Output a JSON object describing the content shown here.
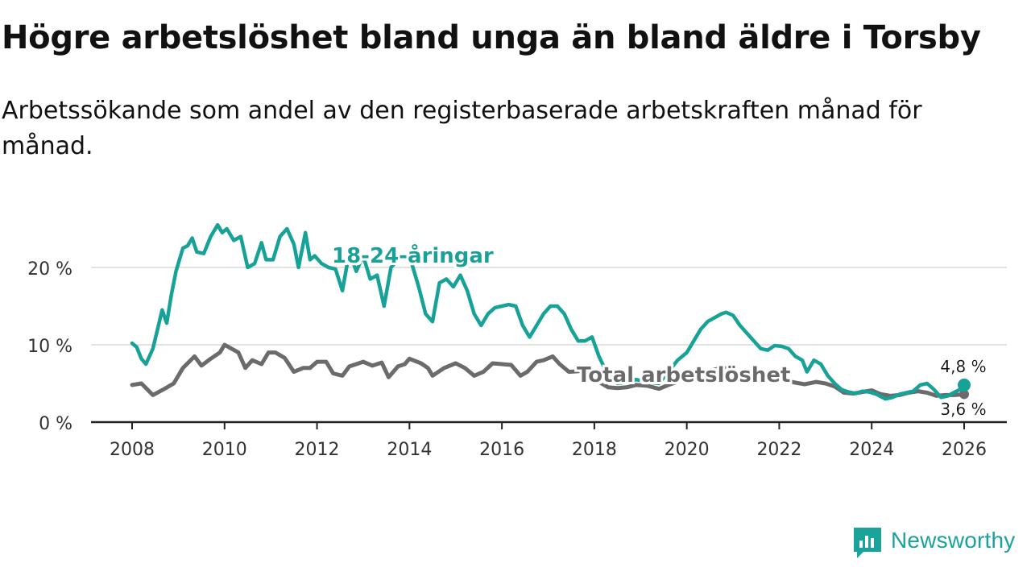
{
  "title": "Högre arbetslöshet bland unga än bland äldre i Torsby",
  "subtitle": "Arbetssökande som andel av den registerbaserade arbetskraften månad för månad.",
  "brand": "Newsworthy",
  "chart_data": {
    "type": "line",
    "title": "Högre arbetslöshet bland unga än bland äldre i Torsby",
    "subtitle": "Arbetssökande som andel av den registerbaserade arbetskraften månad för månad.",
    "xlabel": "",
    "ylabel": "",
    "xlim": [
      2008,
      2026
    ],
    "ylim": [
      0,
      26
    ],
    "grid": true,
    "x_ticks": [
      2008,
      2010,
      2012,
      2014,
      2016,
      2018,
      2020,
      2022,
      2024,
      2026
    ],
    "x_tick_labels": [
      "2008",
      "2010",
      "2012",
      "2014",
      "2016",
      "2018",
      "2020",
      "2022",
      "2024",
      "2026"
    ],
    "y_ticks": [
      0,
      10,
      20
    ],
    "y_tick_labels": [
      "0 %",
      "10 %",
      "20 %"
    ],
    "series": [
      {
        "name": "Total arbetslöshet",
        "label": "Total arbetslöshet",
        "color": "#6b6b6b",
        "end_label": "3,6 %",
        "points": [
          [
            2008.0,
            4.8
          ],
          [
            2008.2,
            5.0
          ],
          [
            2008.45,
            3.5
          ],
          [
            2008.7,
            4.3
          ],
          [
            2008.9,
            5.0
          ],
          [
            2009.1,
            7.0
          ],
          [
            2009.35,
            8.5
          ],
          [
            2009.5,
            7.3
          ],
          [
            2009.7,
            8.2
          ],
          [
            2009.9,
            9.0
          ],
          [
            2010.0,
            10.0
          ],
          [
            2010.15,
            9.5
          ],
          [
            2010.3,
            9.0
          ],
          [
            2010.45,
            7.0
          ],
          [
            2010.6,
            8.0
          ],
          [
            2010.8,
            7.5
          ],
          [
            2010.95,
            9.0
          ],
          [
            2011.1,
            9.0
          ],
          [
            2011.3,
            8.3
          ],
          [
            2011.5,
            6.5
          ],
          [
            2011.7,
            7.0
          ],
          [
            2011.85,
            7.0
          ],
          [
            2012.0,
            7.8
          ],
          [
            2012.2,
            7.8
          ],
          [
            2012.35,
            6.3
          ],
          [
            2012.55,
            6.0
          ],
          [
            2012.7,
            7.2
          ],
          [
            2012.85,
            7.5
          ],
          [
            2013.0,
            7.8
          ],
          [
            2013.2,
            7.3
          ],
          [
            2013.4,
            7.7
          ],
          [
            2013.55,
            5.8
          ],
          [
            2013.75,
            7.2
          ],
          [
            2013.9,
            7.5
          ],
          [
            2014.0,
            8.2
          ],
          [
            2014.25,
            7.6
          ],
          [
            2014.4,
            7.0
          ],
          [
            2014.5,
            6.0
          ],
          [
            2014.75,
            7.0
          ],
          [
            2015.0,
            7.6
          ],
          [
            2015.2,
            7.0
          ],
          [
            2015.4,
            6.0
          ],
          [
            2015.6,
            6.5
          ],
          [
            2015.8,
            7.6
          ],
          [
            2016.0,
            7.5
          ],
          [
            2016.2,
            7.4
          ],
          [
            2016.4,
            6.0
          ],
          [
            2016.55,
            6.5
          ],
          [
            2016.75,
            7.8
          ],
          [
            2016.9,
            8.0
          ],
          [
            2017.1,
            8.5
          ],
          [
            2017.25,
            7.5
          ],
          [
            2017.45,
            6.5
          ],
          [
            2017.7,
            6.6
          ],
          [
            2017.9,
            6.2
          ],
          [
            2018.1,
            5.2
          ],
          [
            2018.3,
            4.5
          ],
          [
            2018.5,
            4.4
          ],
          [
            2018.7,
            4.5
          ],
          [
            2018.9,
            4.8
          ],
          [
            2019.15,
            4.7
          ],
          [
            2019.4,
            4.3
          ],
          [
            2019.6,
            4.8
          ],
          [
            2019.8,
            5.2
          ],
          [
            2020.0,
            5.5
          ],
          [
            2020.3,
            6.2
          ],
          [
            2020.6,
            6.8
          ],
          [
            2020.8,
            7.0
          ],
          [
            2021.0,
            6.8
          ],
          [
            2021.3,
            6.0
          ],
          [
            2021.6,
            5.7
          ],
          [
            2021.9,
            5.4
          ],
          [
            2022.1,
            5.4
          ],
          [
            2022.35,
            5.1
          ],
          [
            2022.55,
            4.9
          ],
          [
            2022.8,
            5.2
          ],
          [
            2023.0,
            5.0
          ],
          [
            2023.2,
            4.6
          ],
          [
            2023.4,
            3.8
          ],
          [
            2023.6,
            3.7
          ],
          [
            2023.8,
            3.9
          ],
          [
            2024.0,
            4.1
          ],
          [
            2024.2,
            3.6
          ],
          [
            2024.4,
            3.4
          ],
          [
            2024.6,
            3.5
          ],
          [
            2024.8,
            3.8
          ],
          [
            2025.0,
            4.0
          ],
          [
            2025.2,
            3.8
          ],
          [
            2025.4,
            3.4
          ],
          [
            2025.6,
            3.5
          ],
          [
            2025.8,
            3.5
          ],
          [
            2026.0,
            3.6
          ]
        ]
      },
      {
        "name": "18-24-åringar",
        "label": "18-24-åringar",
        "color": "#17a298",
        "end_label": "4,8 %",
        "points": [
          [
            2008.0,
            10.2
          ],
          [
            2008.1,
            9.7
          ],
          [
            2008.2,
            8.2
          ],
          [
            2008.3,
            7.5
          ],
          [
            2008.45,
            9.5
          ],
          [
            2008.55,
            12.0
          ],
          [
            2008.65,
            14.5
          ],
          [
            2008.75,
            12.8
          ],
          [
            2008.85,
            16.5
          ],
          [
            2008.95,
            19.5
          ],
          [
            2009.1,
            22.5
          ],
          [
            2009.2,
            22.8
          ],
          [
            2009.3,
            23.8
          ],
          [
            2009.4,
            22.0
          ],
          [
            2009.55,
            21.8
          ],
          [
            2009.7,
            24.0
          ],
          [
            2009.85,
            25.5
          ],
          [
            2009.95,
            24.5
          ],
          [
            2010.05,
            25.0
          ],
          [
            2010.2,
            23.5
          ],
          [
            2010.35,
            24.0
          ],
          [
            2010.5,
            20.0
          ],
          [
            2010.65,
            20.5
          ],
          [
            2010.8,
            23.2
          ],
          [
            2010.9,
            21.0
          ],
          [
            2011.05,
            21.0
          ],
          [
            2011.2,
            24.0
          ],
          [
            2011.35,
            25.0
          ],
          [
            2011.5,
            23.0
          ],
          [
            2011.6,
            20.0
          ],
          [
            2011.75,
            24.5
          ],
          [
            2011.85,
            21.0
          ],
          [
            2011.95,
            21.5
          ],
          [
            2012.1,
            20.5
          ],
          [
            2012.25,
            20.0
          ],
          [
            2012.4,
            19.8
          ],
          [
            2012.55,
            17.0
          ],
          [
            2012.7,
            22.0
          ],
          [
            2012.85,
            19.5
          ],
          [
            2013.0,
            21.5
          ],
          [
            2013.15,
            18.5
          ],
          [
            2013.3,
            19.0
          ],
          [
            2013.45,
            15.0
          ],
          [
            2013.6,
            20.0
          ],
          [
            2013.75,
            21.0
          ],
          [
            2013.9,
            21.5
          ],
          [
            2014.05,
            20.5
          ],
          [
            2014.2,
            17.5
          ],
          [
            2014.35,
            14.0
          ],
          [
            2014.5,
            13.0
          ],
          [
            2014.65,
            18.0
          ],
          [
            2014.8,
            18.5
          ],
          [
            2014.95,
            17.5
          ],
          [
            2015.1,
            19.0
          ],
          [
            2015.25,
            17.0
          ],
          [
            2015.4,
            14.0
          ],
          [
            2015.55,
            12.5
          ],
          [
            2015.7,
            14.0
          ],
          [
            2015.85,
            14.8
          ],
          [
            2016.0,
            15.0
          ],
          [
            2016.15,
            15.2
          ],
          [
            2016.3,
            15.0
          ],
          [
            2016.45,
            12.5
          ],
          [
            2016.6,
            11.0
          ],
          [
            2016.75,
            12.5
          ],
          [
            2016.9,
            14.0
          ],
          [
            2017.05,
            15.0
          ],
          [
            2017.2,
            15.0
          ],
          [
            2017.35,
            14.0
          ],
          [
            2017.5,
            12.0
          ],
          [
            2017.65,
            10.5
          ],
          [
            2017.8,
            10.5
          ],
          [
            2017.95,
            11.0
          ],
          [
            2018.1,
            8.5
          ],
          [
            2018.3,
            6.0
          ],
          [
            2018.5,
            5.0
          ],
          [
            2018.7,
            5.2
          ],
          [
            2018.9,
            5.5
          ],
          [
            2019.15,
            5.2
          ],
          [
            2019.4,
            5.0
          ],
          [
            2019.6,
            6.5
          ],
          [
            2019.8,
            8.0
          ],
          [
            2020.0,
            9.0
          ],
          [
            2020.15,
            10.5
          ],
          [
            2020.3,
            12.0
          ],
          [
            2020.45,
            13.0
          ],
          [
            2020.6,
            13.5
          ],
          [
            2020.75,
            14.0
          ],
          [
            2020.85,
            14.2
          ],
          [
            2021.0,
            13.8
          ],
          [
            2021.15,
            12.5
          ],
          [
            2021.3,
            11.5
          ],
          [
            2021.45,
            10.5
          ],
          [
            2021.6,
            9.5
          ],
          [
            2021.75,
            9.3
          ],
          [
            2021.9,
            9.9
          ],
          [
            2022.05,
            9.8
          ],
          [
            2022.2,
            9.5
          ],
          [
            2022.35,
            8.5
          ],
          [
            2022.5,
            8.0
          ],
          [
            2022.6,
            6.5
          ],
          [
            2022.75,
            8.0
          ],
          [
            2022.9,
            7.5
          ],
          [
            2023.05,
            6.0
          ],
          [
            2023.2,
            5.0
          ],
          [
            2023.35,
            4.2
          ],
          [
            2023.5,
            3.9
          ],
          [
            2023.65,
            3.7
          ],
          [
            2023.8,
            4.0
          ],
          [
            2023.95,
            3.9
          ],
          [
            2024.1,
            3.6
          ],
          [
            2024.3,
            3.0
          ],
          [
            2024.45,
            3.2
          ],
          [
            2024.6,
            3.6
          ],
          [
            2024.75,
            3.8
          ],
          [
            2024.9,
            4.0
          ],
          [
            2025.05,
            4.8
          ],
          [
            2025.2,
            5.0
          ],
          [
            2025.35,
            4.2
          ],
          [
            2025.5,
            3.2
          ],
          [
            2025.65,
            3.4
          ],
          [
            2025.8,
            3.9
          ],
          [
            2025.9,
            4.2
          ],
          [
            2026.0,
            4.8
          ]
        ]
      }
    ]
  }
}
